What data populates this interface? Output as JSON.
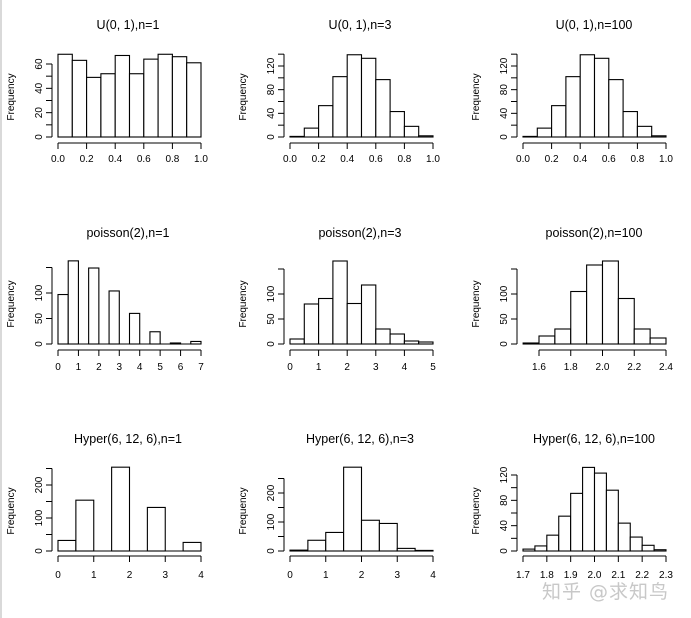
{
  "watermark": "知乎 @求知鸟",
  "chart_data": [
    {
      "type": "bar",
      "title": "U(0, 1),n=1",
      "xlabel": "",
      "ylabel": "Frequency",
      "breaks": [
        0.0,
        0.1,
        0.2,
        0.3,
        0.4,
        0.5,
        0.6,
        0.7,
        0.8,
        0.9,
        1.0
      ],
      "values": [
        68,
        63,
        49,
        52,
        67,
        52,
        64,
        68,
        66,
        61
      ],
      "xlim": [
        0,
        1
      ],
      "xticks": [
        "0.0",
        "0.2",
        "0.4",
        "0.6",
        "0.8",
        "1.0"
      ],
      "xtick_values": [
        0,
        0.2,
        0.4,
        0.6,
        0.8,
        1.0
      ],
      "ylim": [
        0,
        60
      ],
      "yticks": [
        0,
        20,
        40,
        60
      ],
      "yminor": [
        10,
        30,
        50
      ]
    },
    {
      "type": "bar",
      "title": "U(0, 1),n=3",
      "xlabel": "",
      "ylabel": "Frequency",
      "breaks": [
        0.0,
        0.1,
        0.2,
        0.3,
        0.4,
        0.5,
        0.6,
        0.7,
        0.8,
        0.9,
        1.0
      ],
      "values": [
        1,
        15,
        53,
        102,
        139,
        133,
        97,
        43,
        18,
        2
      ],
      "xlim": [
        0,
        1
      ],
      "xticks": [
        "0.0",
        "0.2",
        "0.4",
        "0.6",
        "0.8",
        "1.0"
      ],
      "xtick_values": [
        0,
        0.2,
        0.4,
        0.6,
        0.8,
        1.0
      ],
      "ylim": [
        0,
        140
      ],
      "yticks": [
        0,
        40,
        80,
        120
      ],
      "yminor": [
        20,
        60,
        100,
        140
      ]
    },
    {
      "type": "bar",
      "title": "U(0, 1),n=100",
      "xlabel": "",
      "ylabel": "Frequency",
      "breaks": [
        0.0,
        0.1,
        0.2,
        0.3,
        0.4,
        0.5,
        0.6,
        0.7,
        0.8,
        0.9,
        1.0
      ],
      "values": [
        1,
        15,
        53,
        102,
        139,
        133,
        97,
        43,
        18,
        2
      ],
      "xlim": [
        0,
        1
      ],
      "xticks": [
        "0.0",
        "0.2",
        "0.4",
        "0.6",
        "0.8",
        "1.0"
      ],
      "xtick_values": [
        0,
        0.2,
        0.4,
        0.6,
        0.8,
        1.0
      ],
      "ylim": [
        0,
        140
      ],
      "yticks": [
        0,
        40,
        80,
        120
      ],
      "yminor": [
        20,
        60,
        100,
        140
      ]
    },
    {
      "type": "bar",
      "title": "poisson(2),n=1",
      "xlabel": "",
      "ylabel": "Frequency",
      "breaks": [
        0,
        0.5,
        1,
        1.5,
        2,
        2.5,
        3,
        3.5,
        4,
        4.5,
        5,
        5.5,
        6,
        6.5,
        7
      ],
      "values": [
        97,
        163,
        0,
        149,
        0,
        104,
        0,
        60,
        0,
        24,
        0,
        2,
        0,
        5
      ],
      "xlim": [
        0,
        7
      ],
      "xticks": [
        "0",
        "1",
        "2",
        "3",
        "4",
        "5",
        "6",
        "7"
      ],
      "xtick_values": [
        0,
        1,
        2,
        3,
        4,
        5,
        6,
        7
      ],
      "ylim": [
        0,
        150
      ],
      "yticks": [
        0,
        50,
        100
      ],
      "yminor": [
        150
      ]
    },
    {
      "type": "bar",
      "title": "poisson(2),n=3",
      "xlabel": "",
      "ylabel": "Frequency",
      "breaks": [
        0,
        0.5,
        1,
        1.5,
        2,
        2.5,
        3,
        3.5,
        4,
        4.5,
        5
      ],
      "values": [
        10,
        80,
        91,
        166,
        81,
        118,
        30,
        20,
        6,
        4
      ],
      "xlim": [
        0,
        5
      ],
      "xticks": [
        "0",
        "1",
        "2",
        "3",
        "4",
        "5"
      ],
      "xtick_values": [
        0,
        1,
        2,
        3,
        4,
        5
      ],
      "ylim": [
        0,
        150
      ],
      "yticks": [
        0,
        50,
        100
      ],
      "yminor": [
        150
      ]
    },
    {
      "type": "bar",
      "title": "poisson(2),n=100",
      "xlabel": "",
      "ylabel": "Frequency",
      "breaks": [
        1.5,
        1.6,
        1.7,
        1.8,
        1.9,
        2.0,
        2.1,
        2.2,
        2.3,
        2.4
      ],
      "values": [
        2,
        16,
        30,
        105,
        158,
        166,
        91,
        30,
        12
      ],
      "xlim": [
        1.6,
        2.4
      ],
      "xticks": [
        "1.6",
        "1.8",
        "2.0",
        "2.2",
        "2.4"
      ],
      "xtick_values": [
        1.6,
        1.8,
        2.0,
        2.2,
        2.4
      ],
      "ylim": [
        0,
        150
      ],
      "yticks": [
        0,
        50,
        100
      ],
      "yminor": [
        150
      ]
    },
    {
      "type": "bar",
      "title": "Hyper(6, 12, 6),n=1",
      "xlabel": "",
      "ylabel": "Frequency",
      "breaks": [
        0,
        0.5,
        1,
        1.5,
        2,
        2.5,
        3,
        3.5,
        4
      ],
      "values": [
        32,
        154,
        0,
        254,
        0,
        132,
        0,
        26
      ],
      "xlim": [
        0,
        4
      ],
      "xticks": [
        "0",
        "1",
        "2",
        "3",
        "4"
      ],
      "xtick_values": [
        0,
        1,
        2,
        3,
        4
      ],
      "ylim": [
        0,
        250
      ],
      "yticks": [
        0,
        100,
        200
      ],
      "yminor": [
        50,
        150,
        250
      ]
    },
    {
      "type": "bar",
      "title": "Hyper(6, 12, 6),n=3",
      "xlabel": "",
      "ylabel": "Frequency",
      "breaks": [
        0,
        0.5,
        1,
        1.5,
        2,
        2.5,
        3,
        3.5,
        4
      ],
      "values": [
        3,
        37,
        64,
        289,
        106,
        95,
        9,
        2
      ],
      "xlim": [
        0,
        4
      ],
      "xticks": [
        "0",
        "1",
        "2",
        "3",
        "4"
      ],
      "xtick_values": [
        0,
        1,
        2,
        3,
        4
      ],
      "ylim": [
        0,
        250
      ],
      "yticks": [
        0,
        100,
        200
      ],
      "yminor": [
        50,
        150,
        250
      ]
    },
    {
      "type": "bar",
      "title": "Hyper(6, 12, 6),n=100",
      "xlabel": "",
      "ylabel": "Frequency",
      "breaks": [
        1.7,
        1.75,
        1.8,
        1.85,
        1.9,
        1.95,
        2.0,
        2.05,
        2.1,
        2.15,
        2.2,
        2.25,
        2.3
      ],
      "values": [
        3,
        8,
        25,
        55,
        91,
        132,
        123,
        96,
        44,
        22,
        9,
        2
      ],
      "xlim": [
        1.7,
        2.3
      ],
      "xticks": [
        "1.7",
        "1.8",
        "1.9",
        "2.0",
        "2.1",
        "2.2",
        "2.3"
      ],
      "xtick_values": [
        1.7,
        1.8,
        1.9,
        2.0,
        2.1,
        2.2,
        2.3
      ],
      "ylim": [
        0,
        120
      ],
      "yticks": [
        0,
        40,
        80,
        120
      ],
      "yminor": [
        20,
        60,
        100
      ]
    }
  ]
}
